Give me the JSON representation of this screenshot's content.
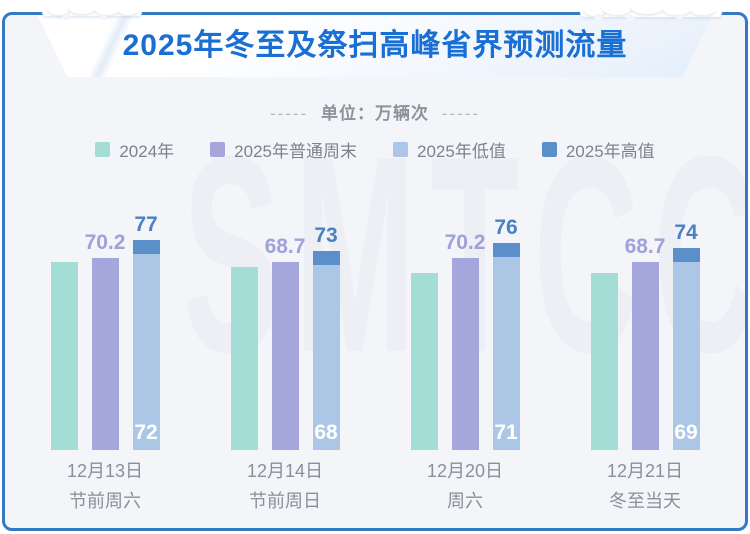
{
  "header": {
    "title": "2025年冬至及祭扫高峰省界预测流量"
  },
  "subtitle": {
    "prefix": "-----",
    "unit_label": "单位：万辆次",
    "suffix": "-----"
  },
  "watermark": {
    "text": "SMTCC"
  },
  "colors": {
    "title_blue": "#1a6fd3",
    "card_border": "#3579c5",
    "card_background": "#f3f5f9",
    "gray_text": "#8a8f98",
    "watermark_gray": "#edeff5",
    "series_2024": "#a4dcd6",
    "series_weekend": "#a5a6db",
    "series_low": "#abc7e5",
    "series_high": "#5a8fca"
  },
  "chart_data": {
    "type": "bar",
    "title": "2025年冬至及祭扫高峰省界预测流量",
    "ylabel": "万辆次",
    "categories": [
      {
        "date": "12月13日",
        "note": "节前周六"
      },
      {
        "date": "12月14日",
        "note": "节前周日"
      },
      {
        "date": "12月20日",
        "note": "周六"
      },
      {
        "date": "12月21日",
        "note": "冬至当天"
      }
    ],
    "series": [
      {
        "name": "2024年",
        "color": "#a4dcd6",
        "values": [
          68.8,
          67.0,
          64.8,
          64.9
        ],
        "labels_shown": false,
        "values_estimated": true
      },
      {
        "name": "2025年普通周末",
        "color": "#a5a6db",
        "values": [
          70.2,
          68.7,
          70.2,
          68.7
        ],
        "label_position": "above",
        "label_color": "#9fa1d9"
      },
      {
        "name": "2025年低值",
        "color": "#abc7e5",
        "values": [
          72,
          68,
          71,
          69
        ],
        "label_position": "inside-bottom",
        "label_color": "#ffffff",
        "stack_group": "range"
      },
      {
        "name": "2025年高值",
        "color": "#5a8fca",
        "values": [
          77,
          73,
          76,
          74
        ],
        "label_position": "above",
        "label_color": "#4a80c4",
        "stack_group": "range",
        "stacked_on": "2025年低值"
      }
    ],
    "ylim": [
      0,
      80
    ],
    "grid": false,
    "legend_position": "top"
  }
}
